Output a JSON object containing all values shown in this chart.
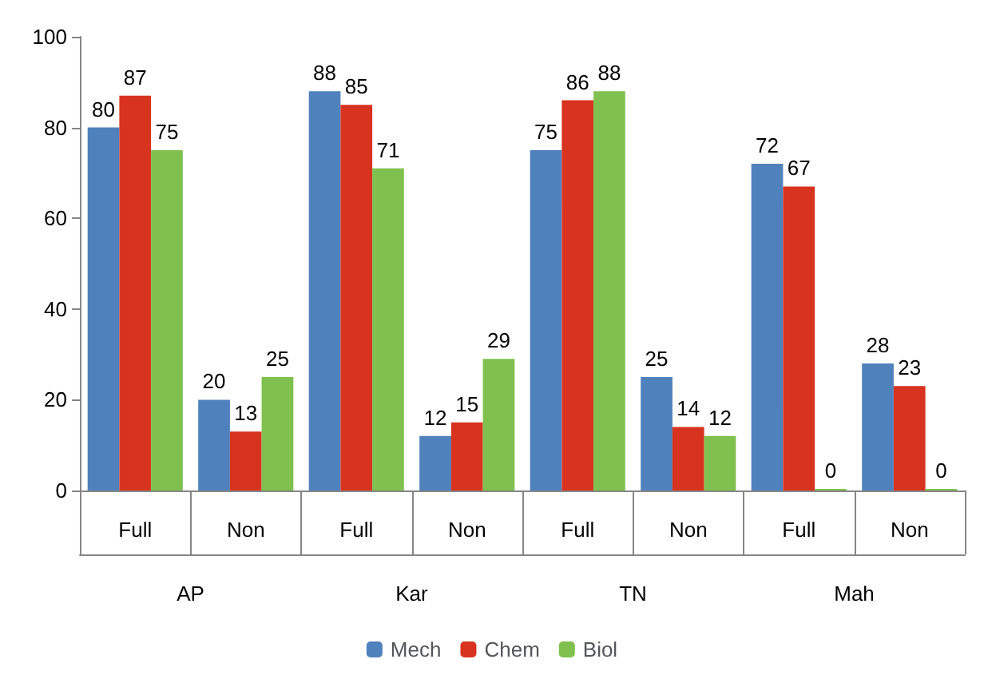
{
  "chart_data": {
    "type": "bar",
    "categories": [
      "Full",
      "Non",
      "Full",
      "Non",
      "Full",
      "Non",
      "Full",
      "Non"
    ],
    "series": [
      {
        "name": "Mech",
        "color": "#4f81bd",
        "values": [
          80,
          20,
          88,
          12,
          75,
          25,
          72,
          28
        ]
      },
      {
        "name": "Chem",
        "color": "#d7331f",
        "values": [
          87,
          13,
          85,
          15,
          86,
          14,
          67,
          23
        ]
      },
      {
        "name": "Biol",
        "color": "#80c04e",
        "values": [
          75,
          25,
          71,
          29,
          88,
          12,
          0,
          0
        ]
      }
    ],
    "annotations": [
      "AP",
      "Kar",
      "TN",
      "Mah"
    ],
    "ylim": [
      0,
      100
    ],
    "yticks": [
      0,
      20,
      40,
      60,
      80,
      100
    ],
    "grid": false,
    "legend": "bottom",
    "data_labels": true
  }
}
